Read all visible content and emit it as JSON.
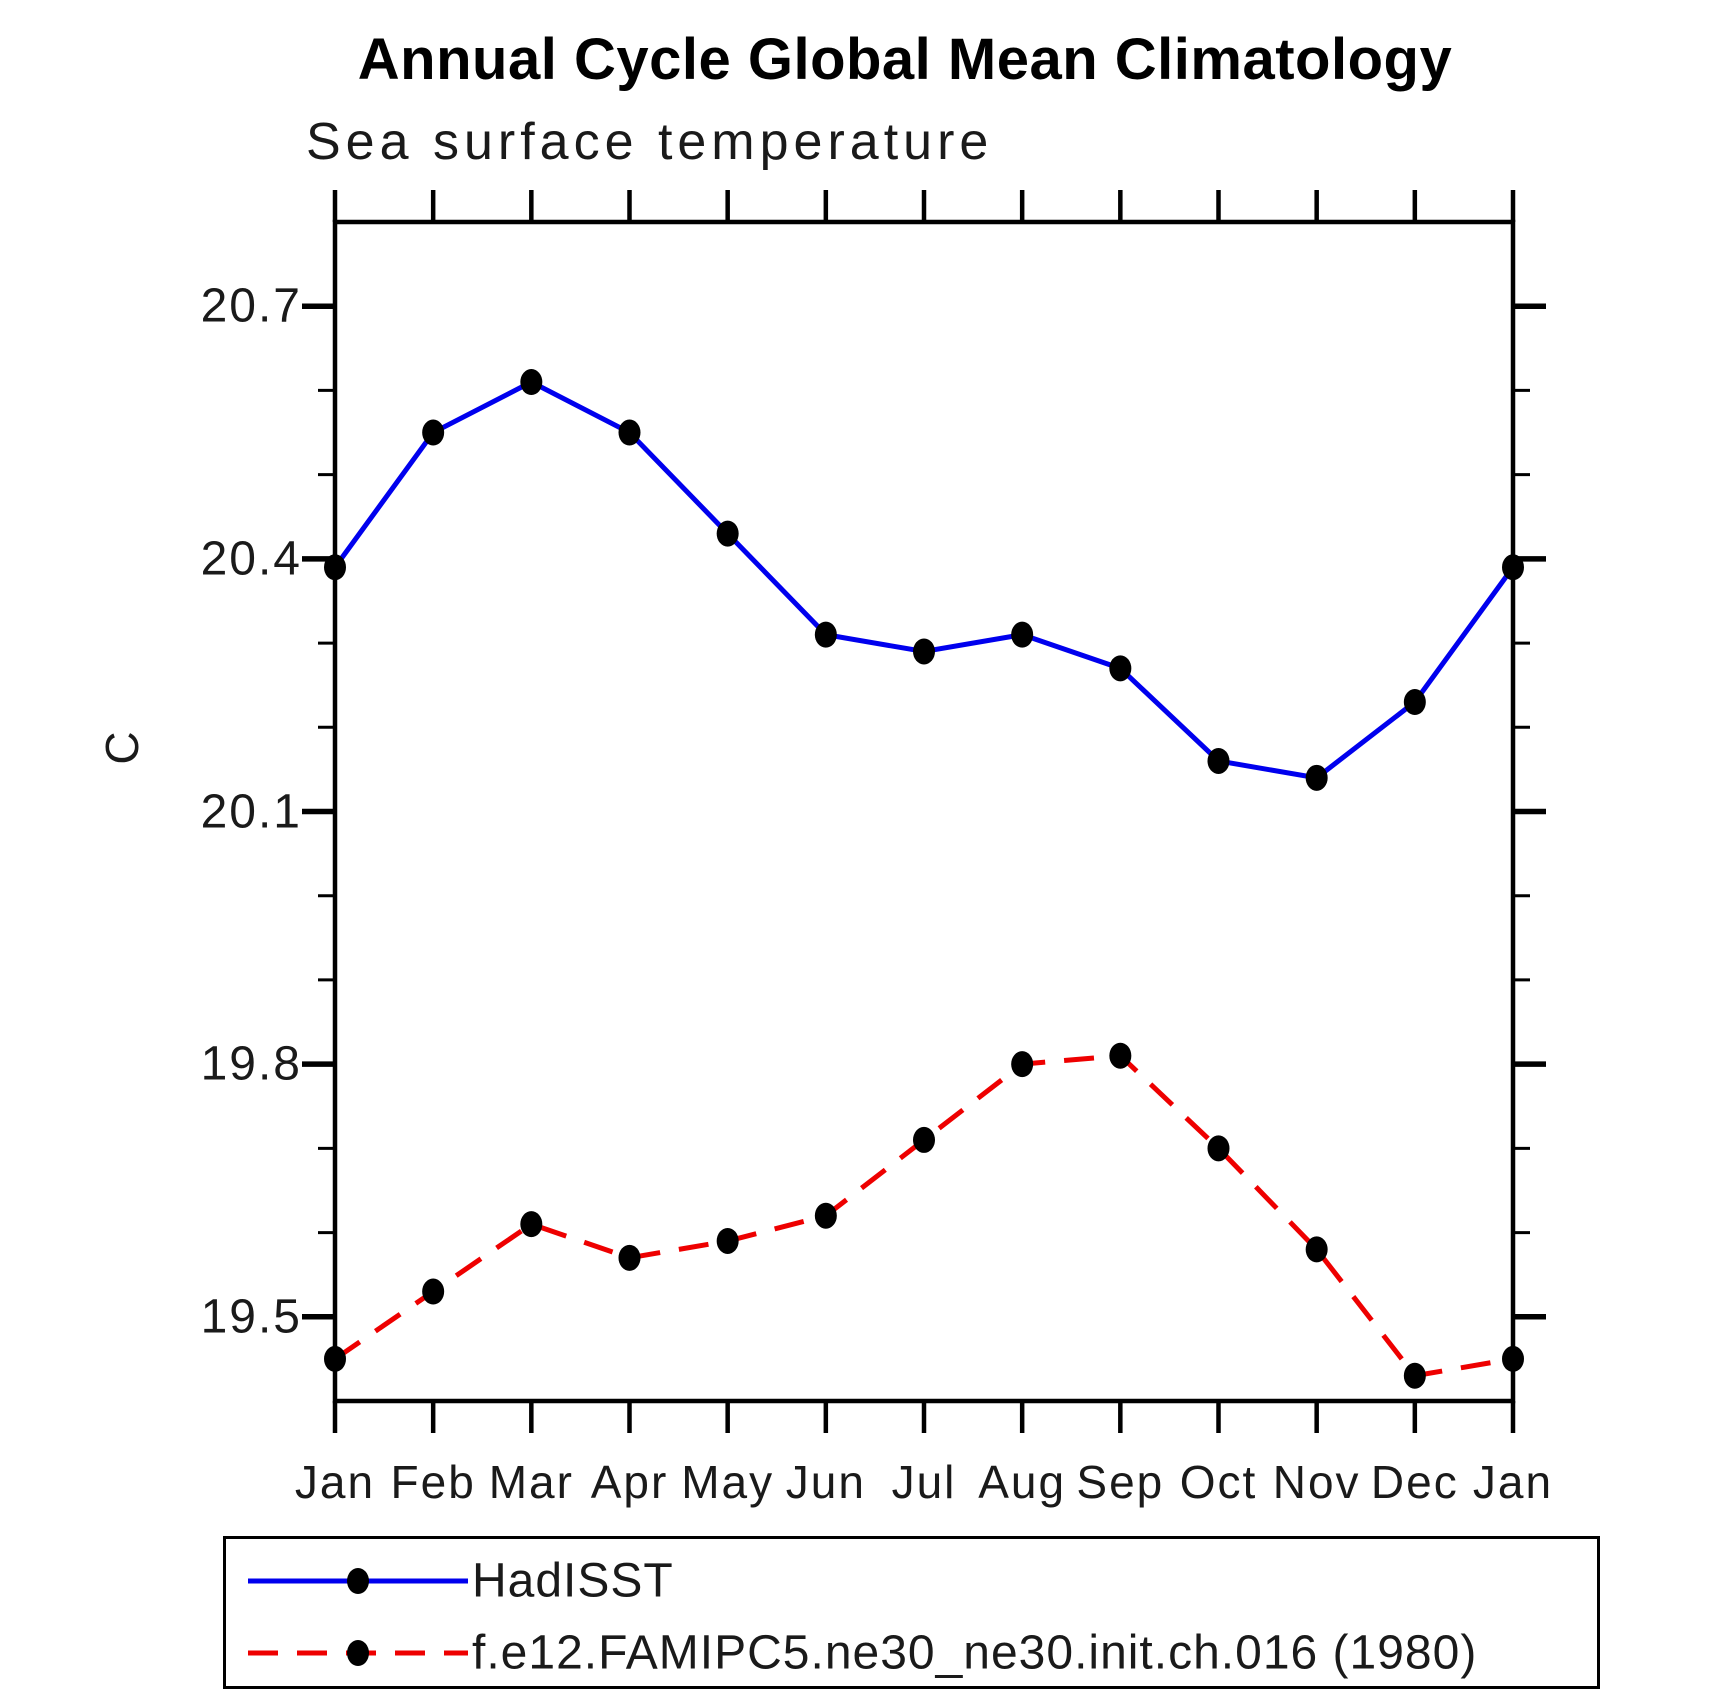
{
  "title": "Annual Cycle Global Mean Climatology",
  "subtitle": "Sea surface temperature",
  "y_axis": {
    "label": "C",
    "ticks": [
      {
        "label": "20.7",
        "value": 20.7
      },
      {
        "label": "20.4",
        "value": 20.4
      },
      {
        "label": "20.1",
        "value": 20.1
      },
      {
        "label": "19.8",
        "value": 19.8
      },
      {
        "label": "19.5",
        "value": 19.5
      }
    ]
  },
  "x_axis": {
    "tick_labels": [
      "Jan",
      "Feb",
      "Mar",
      "Apr",
      "May",
      "Jun",
      "Jul",
      "Aug",
      "Sep",
      "Oct",
      "Nov",
      "Dec",
      "Jan"
    ]
  },
  "legend": [
    {
      "label": "HadISST",
      "color": "#0000ee",
      "style": "solid"
    },
    {
      "label": "f.e12.FAMIPC5.ne30_ne30.init.ch.016 (1980)",
      "color": "#ee0000",
      "style": "dashed"
    }
  ],
  "chart_data": {
    "type": "line",
    "title": "Annual Cycle Global Mean Climatology",
    "subtitle": "Sea surface temperature",
    "xlabel": "",
    "ylabel": "C",
    "categories": [
      "Jan",
      "Feb",
      "Mar",
      "Apr",
      "May",
      "Jun",
      "Jul",
      "Aug",
      "Sep",
      "Oct",
      "Nov",
      "Dec",
      "Jan"
    ],
    "series": [
      {
        "name": "HadISST",
        "color": "#0000ee",
        "line_style": "solid",
        "marker": "filled-circle",
        "marker_color": "#000000",
        "values": [
          20.39,
          20.55,
          20.61,
          20.55,
          20.43,
          20.31,
          20.29,
          20.31,
          20.27,
          20.16,
          20.14,
          20.23,
          20.39
        ]
      },
      {
        "name": "f.e12.FAMIPC5.ne30_ne30.init.ch.016 (1980)",
        "color": "#ee0000",
        "line_style": "dashed",
        "marker": "filled-circle",
        "marker_color": "#000000",
        "values": [
          19.45,
          19.53,
          19.61,
          19.57,
          19.59,
          19.62,
          19.71,
          19.8,
          19.81,
          19.7,
          19.58,
          19.43,
          19.45
        ]
      }
    ],
    "ylim": [
      19.4,
      20.8
    ],
    "yticks_major": [
      20.7,
      20.4,
      20.1,
      19.8,
      19.5
    ],
    "ytick_minor_step": 0.1,
    "grid": "off",
    "legend_position": "bottom-left-box",
    "ticks_style": "outward-all-sides"
  }
}
